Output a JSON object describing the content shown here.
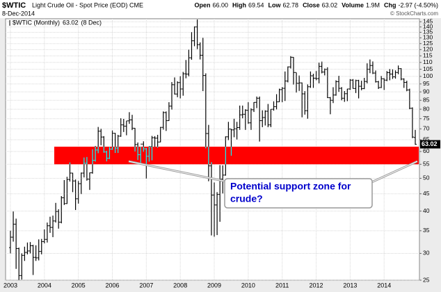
{
  "header": {
    "symbol": "$WTIC",
    "description": "Light Crude Oil - Spot Price (EOD) CME",
    "date": "8-Dec-2014",
    "stats": [
      {
        "label": "Open",
        "value": "66.00"
      },
      {
        "label": "High",
        "value": "69.54"
      },
      {
        "label": "Low",
        "value": "62.78"
      },
      {
        "label": "Close",
        "value": "63.02"
      },
      {
        "label": "Volume",
        "value": "1.9M"
      },
      {
        "label": "Chg",
        "value": "-2.97 (-4.50%)"
      }
    ],
    "copyright": "© StockCharts.com"
  },
  "chart_data": {
    "type": "ohlc",
    "log_scale": true,
    "grid": true,
    "legend": "top-left",
    "legend_date": "(8 Dec)",
    "categories": [
      "2003",
      null,
      null,
      null,
      null,
      null,
      null,
      null,
      null,
      null,
      null,
      null,
      "2004",
      null,
      null,
      null,
      null,
      null,
      null,
      null,
      null,
      null,
      null,
      null,
      "2005",
      null,
      null,
      null,
      null,
      null,
      null,
      null,
      null,
      null,
      null,
      null,
      "2006",
      null,
      null,
      null,
      null,
      null,
      null,
      null,
      null,
      null,
      null,
      null,
      "2007",
      null,
      null,
      null,
      null,
      null,
      null,
      null,
      null,
      null,
      null,
      null,
      "2008",
      null,
      null,
      null,
      null,
      null,
      null,
      null,
      null,
      null,
      null,
      null,
      "2009",
      null,
      null,
      null,
      null,
      null,
      null,
      null,
      null,
      null,
      null,
      null,
      "2010",
      null,
      null,
      null,
      null,
      null,
      null,
      null,
      null,
      null,
      null,
      null,
      "2011",
      null,
      null,
      null,
      null,
      null,
      null,
      null,
      null,
      null,
      null,
      null,
      "2012",
      null,
      null,
      null,
      null,
      null,
      null,
      null,
      null,
      null,
      null,
      null,
      "2013",
      null,
      null,
      null,
      null,
      null,
      null,
      null,
      null,
      null,
      null,
      null,
      "2014",
      null,
      null,
      null,
      null,
      null,
      null,
      null,
      null,
      null,
      null,
      null
    ],
    "series": [
      {
        "name": "$WTIC (Monthly)",
        "color": "#000000",
        "open": [
          31.2,
          33.5,
          36.6,
          31.0,
          25.8,
          29.6,
          30.2,
          30.5,
          31.6,
          29.2,
          29.1,
          30.4,
          32.5,
          33.0,
          36.2,
          35.8,
          37.4,
          39.9,
          37.1,
          43.8,
          42.1,
          49.6,
          51.8,
          49.1,
          43.5,
          48.2,
          51.8,
          55.4,
          49.7,
          51.9,
          56.5,
          60.6,
          68.9,
          66.2,
          59.8,
          57.3,
          61.0,
          67.9,
          61.4,
          66.6,
          71.9,
          71.3,
          73.9,
          74.4,
          70.3,
          62.9,
          58.7,
          63.1,
          61.1,
          58.1,
          62.0,
          65.9,
          65.7,
          64.0,
          70.7,
          78.2,
          74.0,
          81.7,
          94.5,
          88.7,
          95.9,
          91.8,
          101.8,
          101.6,
          113.5,
          127.4,
          140.0,
          124.1,
          115.5,
          100.6,
          67.8,
          54.4,
          44.6,
          41.7,
          44.8,
          49.7,
          51.1,
          66.3,
          69.9,
          69.5,
          70.0,
          70.6,
          77.0,
          77.3,
          79.4,
          72.9,
          79.7,
          83.8,
          86.2,
          74.0,
          75.6,
          78.9,
          71.9,
          79.97,
          81.4,
          84.1,
          91.4,
          92.2,
          96.9,
          106.7,
          113.9,
          102.7,
          95.4,
          95.7,
          88.8,
          79.2,
          93.2,
          100.4,
          98.8,
          98.5,
          107.1,
          103.0,
          104.9,
          86.5,
          85.0,
          88.1,
          96.5,
          92.2,
          86.2,
          88.9,
          91.8,
          97.5,
          92.1,
          97.2,
          93.5,
          92.0,
          96.6,
          105.0,
          107.7,
          102.3,
          96.4,
          92.7,
          98.4,
          97.5,
          102.6,
          101.6,
          99.7,
          102.7,
          105.4,
          98.2,
          96.0,
          91.2,
          80.5,
          66.0
        ],
        "high": [
          35.0,
          39.9,
          38.0,
          31.2,
          30.0,
          31.4,
          32.3,
          32.4,
          31.8,
          31.7,
          33.0,
          33.1,
          35.3,
          37.0,
          38.5,
          38.8,
          42.3,
          40.5,
          44.3,
          49.4,
          50.5,
          55.7,
          51.9,
          49.6,
          49.1,
          52.0,
          57.6,
          57.8,
          52.0,
          60.9,
          62.3,
          70.9,
          70.0,
          66.6,
          60.3,
          61.9,
          69.2,
          68.1,
          67.2,
          75.2,
          74.9,
          73.9,
          78.4,
          77.0,
          70.4,
          63.8,
          62.0,
          64.3,
          61.4,
          62.2,
          66.7,
          66.6,
          67.2,
          70.9,
          78.8,
          78.8,
          83.9,
          96.2,
          99.3,
          96.7,
          100.1,
          103.1,
          111.8,
          119.9,
          135.1,
          140.4,
          147.3,
          126.0,
          130.0,
          102.1,
          71.9,
          55.8,
          48.6,
          45.5,
          54.7,
          54.6,
          66.5,
          73.4,
          70.0,
          75.0,
          73.4,
          82.0,
          82.0,
          80.0,
          83.95,
          80.5,
          83.9,
          87.2,
          87.2,
          79.4,
          79.4,
          82.9,
          80.0,
          84.4,
          88.6,
          92.0,
          93.0,
          103.4,
          107.0,
          114.8,
          114.0,
          102.6,
          100.6,
          95.9,
          90.5,
          94.7,
          103.4,
          101.8,
          103.7,
          109.8,
          110.6,
          105.5,
          106.4,
          86.9,
          92.9,
          97.4,
          100.4,
          93.0,
          90.5,
          91.9,
          98.2,
          98.2,
          97.8,
          97.7,
          97.1,
          99.0,
          109.3,
          112.2,
          110.7,
          104.1,
          97.0,
          100.3,
          98.8,
          103.7,
          105.2,
          104.9,
          104.2,
          107.7,
          105.8,
          98.7,
          97.1,
          92.0,
          81.0,
          69.5
        ],
        "low": [
          30.0,
          32.5,
          27.0,
          25.0,
          25.1,
          28.5,
          29.8,
          30.0,
          25.9,
          28.5,
          28.6,
          29.8,
          32.1,
          32.3,
          34.5,
          33.5,
          37.0,
          35.5,
          36.8,
          41.7,
          42.0,
          48.9,
          45.5,
          40.3,
          42.1,
          44.9,
          50.3,
          49.2,
          46.2,
          51.6,
          56.0,
          59.3,
          62.6,
          59.5,
          56.1,
          57.0,
          60.7,
          59.4,
          59.4,
          66.3,
          68.5,
          67.0,
          72.4,
          69.4,
          60.0,
          56.6,
          55.4,
          59.9,
          49.9,
          56.0,
          56.5,
          61.9,
          61.6,
          63.9,
          69.6,
          69.0,
          73.9,
          79.8,
          88.4,
          86.8,
          86.1,
          87.7,
          98.7,
          100.1,
          112.0,
          122.8,
          120.4,
          112.2,
          90.5,
          61.3,
          49.0,
          33.9,
          33.6,
          33.98,
          37.2,
          45.1,
          50.9,
          64.8,
          58.3,
          66.1,
          65.1,
          69.5,
          75.2,
          69.5,
          72.4,
          69.5,
          78.5,
          80.6,
          64.2,
          70.8,
          71.6,
          70.8,
          70.8,
          79.2,
          79.9,
          84.0,
          83.9,
          84.6,
          96.0,
          105.5,
          94.6,
          89.6,
          90.6,
          75.7,
          77.1,
          74.95,
          92.5,
          92.5,
          97.4,
          95.4,
          102.1,
          100.7,
          86.3,
          77.3,
          83.4,
          87.7,
          90.0,
          85.0,
          84.1,
          84.5,
          91.2,
          92.0,
          89.3,
          86.1,
          91.0,
          91.7,
          95.4,
          102.2,
          101.6,
          95.9,
          91.8,
          92.4,
          91.2,
          96.8,
          97.4,
          98.3,
          98.5,
          101.5,
          97.4,
          92.5,
          90.4,
          80.0,
          65.7,
          62.8
        ],
        "close": [
          33.5,
          36.6,
          31.0,
          25.8,
          29.6,
          30.2,
          30.5,
          31.6,
          29.2,
          29.1,
          30.4,
          32.5,
          33.0,
          36.2,
          35.8,
          37.4,
          39.9,
          37.1,
          43.8,
          42.1,
          49.6,
          51.8,
          49.1,
          43.5,
          48.2,
          51.8,
          55.4,
          49.7,
          51.9,
          56.5,
          60.6,
          68.9,
          66.2,
          59.8,
          57.3,
          61.0,
          67.9,
          61.4,
          66.6,
          71.9,
          71.3,
          73.9,
          74.4,
          70.3,
          62.9,
          58.7,
          63.1,
          61.1,
          58.1,
          62.0,
          65.9,
          65.7,
          64.0,
          70.7,
          78.2,
          74.0,
          81.7,
          94.5,
          88.7,
          95.9,
          91.8,
          101.8,
          101.6,
          113.5,
          127.4,
          140.0,
          124.1,
          115.5,
          100.6,
          67.8,
          54.4,
          44.6,
          41.7,
          44.8,
          49.7,
          51.1,
          66.3,
          69.9,
          69.5,
          70.0,
          70.6,
          77.0,
          77.3,
          79.4,
          72.9,
          79.7,
          83.8,
          86.2,
          74.0,
          75.6,
          78.9,
          71.9,
          79.97,
          81.4,
          84.1,
          91.4,
          92.2,
          96.9,
          106.7,
          113.9,
          102.7,
          95.4,
          95.7,
          88.8,
          79.2,
          93.2,
          100.4,
          98.8,
          98.5,
          107.1,
          103.0,
          104.9,
          86.5,
          85.0,
          88.1,
          96.5,
          92.2,
          86.2,
          88.9,
          91.8,
          97.5,
          92.1,
          97.2,
          93.5,
          92.0,
          96.6,
          105.0,
          107.7,
          102.3,
          96.4,
          92.7,
          98.4,
          97.5,
          102.6,
          101.6,
          99.7,
          102.7,
          105.4,
          98.2,
          96.0,
          91.2,
          80.5,
          66.2,
          63.02
        ]
      }
    ],
    "ylim": [
      25,
      148
    ],
    "yticks": [
      25,
      30,
      35,
      40,
      45,
      50,
      55,
      60,
      65,
      70,
      75,
      80,
      85,
      90,
      95,
      100,
      105,
      110,
      115,
      120,
      125,
      130,
      135,
      140,
      145
    ],
    "support_band": {
      "range": [
        55,
        62
      ],
      "color": "#ff0000"
    },
    "annotation": {
      "lines": [
        "Potential support zone for",
        "crude?"
      ],
      "color": "#0000cc"
    }
  }
}
